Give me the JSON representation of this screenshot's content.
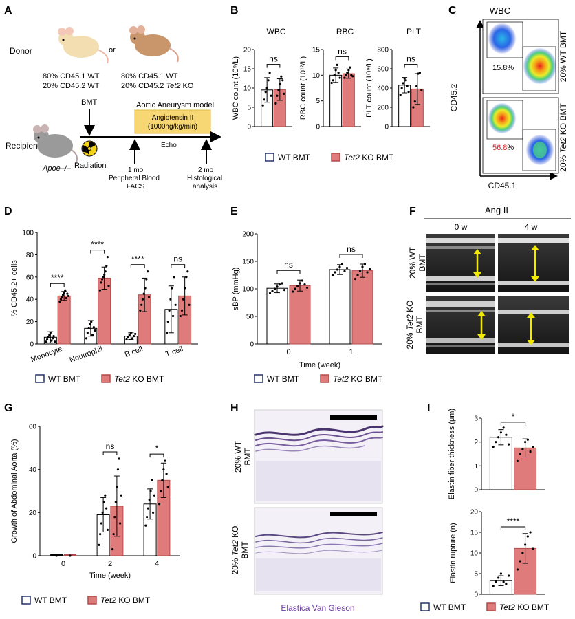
{
  "colors": {
    "wt_fill": "#ffffff",
    "ko_fill": "#e07b7b",
    "ko_stroke": "#b34a4a",
    "donor_wt": "#f2deb0",
    "donor_ko": "#c8966a",
    "recipient": "#9a9a9a",
    "ang_box": "#f7d774",
    "arrow": "#f2ea00",
    "purple": "#6b3fa0",
    "red_text": "#d21f1f"
  },
  "panels": {
    "A": "A",
    "B": "B",
    "C": "C",
    "D": "D",
    "E": "E",
    "F": "F",
    "G": "G",
    "H": "H",
    "I": "I"
  },
  "legend": {
    "wt": "WT BMT",
    "ko_gene": "Tet2",
    "ko_rest": " KO BMT"
  },
  "panelA": {
    "donor": "Donor",
    "or": "or",
    "wt_mix_1": "80% CD45.1 WT",
    "wt_mix_2": "20% CD45.2 WT",
    "ko_mix_1": "80% CD45.1 WT",
    "ko_mix_2_pre": "20% CD45.2 ",
    "ko_mix_2_gene": "Tet2",
    "ko_mix_2_post": " KO",
    "model": "Aortic Aneurysm model",
    "ang_1": "Angiotensin II",
    "ang_2": "(1000ng/kg/min)",
    "bmt": "BMT",
    "echo": "Echo",
    "recipient": "Recipient",
    "strain": "Apoe–/–",
    "radiation": "Radiation",
    "t1": "1 mo",
    "t1_desc_1": "Peripheral Blood",
    "t1_desc_2": "FACS",
    "t2": "2 mo",
    "t2_desc_1": "Histological",
    "t2_desc_2": "analysis"
  },
  "panelC": {
    "title": "WBC",
    "ylabel": "CD45.2",
    "xlabel": "CD45.1",
    "wt_pct": "15.8%",
    "ko_pct_num": "56.8",
    "ko_pct_sign": "%",
    "wt_label": "20% WT BMT",
    "ko_pre": "20% ",
    "ko_gene": "Tet2",
    "ko_post": " KO BMT"
  },
  "panelF": {
    "title": "Ang II",
    "t0": "0 w",
    "t4": "4 w",
    "wt_1": "20% WT",
    "wt_2": "BMT",
    "ko_1_pre": "20% ",
    "ko_1_gene": "Tet2",
    "ko_1_post": " KO",
    "ko_2": "BMT"
  },
  "panelH": {
    "wt_1": "20% WT",
    "wt_2": "BMT",
    "ko_1_pre": "20% ",
    "ko_1_gene": "Tet2",
    "ko_1_post": " KO",
    "ko_2": "BMT",
    "stain": "Elastica Van Gieson"
  },
  "chart_data": [
    {
      "panel": "B",
      "type": "bar",
      "title": "WBC",
      "ylabel": "WBC count (10⁹/L)",
      "ylim": [
        0,
        20
      ],
      "yticks": [
        "0",
        "5",
        "10",
        "15",
        "20"
      ],
      "sig": "ns",
      "series": [
        {
          "name": "WT BMT",
          "mean": 9.5,
          "sd": 3.2,
          "points": [
            5.5,
            7,
            9,
            10,
            12,
            14,
            8
          ]
        },
        {
          "name": "Tet2 KO BMT",
          "mean": 9.6,
          "sd": 2.8,
          "points": [
            6,
            8,
            9.5,
            11,
            13,
            12,
            8.5
          ]
        }
      ]
    },
    {
      "panel": "B",
      "type": "bar",
      "title": "RBC",
      "ylabel": "RBC count (10¹²/L)",
      "ylim": [
        0,
        15
      ],
      "yticks": [
        "0",
        "5",
        "10",
        "15"
      ],
      "sig": "ns",
      "series": [
        {
          "name": "WT BMT",
          "mean": 10.0,
          "sd": 1.4,
          "points": [
            8.5,
            9,
            10,
            11,
            12,
            10.5,
            9.5
          ]
        },
        {
          "name": "Tet2 KO BMT",
          "mean": 10.3,
          "sd": 0.9,
          "points": [
            9.5,
            10,
            10.5,
            11,
            11.5,
            10,
            9.8
          ]
        }
      ]
    },
    {
      "panel": "B",
      "type": "bar",
      "title": "PLT",
      "ylabel": "PLT count (10⁹/L)",
      "ylim": [
        0,
        800
      ],
      "yticks": [
        "0",
        "200",
        "400",
        "600",
        "800"
      ],
      "sig": "ns",
      "series": [
        {
          "name": "WT BMT",
          "mean": 430,
          "sd": 80,
          "points": [
            330,
            400,
            450,
            500,
            480,
            420,
            360
          ]
        },
        {
          "name": "Tet2 KO BMT",
          "mean": 390,
          "sd": 160,
          "points": [
            200,
            260,
            420,
            550,
            560,
            380
          ]
        }
      ]
    },
    {
      "panel": "D",
      "type": "bar",
      "ylabel": "% CD45.2+ cells",
      "ylim": [
        0,
        100
      ],
      "yticks": [
        "0",
        "20",
        "40",
        "60",
        "80",
        "100"
      ],
      "categories": [
        "Monocyte",
        "Neutrophil",
        "B cell",
        "T cell"
      ],
      "sig": [
        "****",
        "****",
        "****",
        "ns"
      ],
      "series": [
        {
          "name": "WT BMT",
          "values": [
            6,
            14,
            7,
            31
          ],
          "sd": [
            5,
            7,
            3,
            21
          ],
          "points": [
            [
              2,
              4,
              6,
              8,
              10,
              3,
              5,
              7,
              2
            ],
            [
              5,
              10,
              14,
              18,
              20,
              8,
              15,
              12
            ],
            [
              4,
              6,
              8,
              10,
              5,
              7,
              9
            ],
            [
              10,
              20,
              30,
              40,
              50,
              25,
              60,
              35
            ]
          ]
        },
        {
          "name": "Tet2 KO BMT",
          "values": [
            43,
            59,
            44,
            43
          ],
          "sd": [
            4,
            10,
            15,
            17
          ],
          "points": [
            [
              38,
              40,
              42,
              44,
              46,
              48,
              41,
              45,
              43
            ],
            [
              48,
              55,
              58,
              60,
              62,
              65,
              70,
              78,
              52
            ],
            [
              30,
              35,
              40,
              45,
              50,
              58,
              65,
              42
            ],
            [
              25,
              30,
              40,
              50,
              60,
              65,
              35
            ]
          ]
        }
      ]
    },
    {
      "panel": "E",
      "type": "bar",
      "ylabel": "sBP (mmHg)",
      "xlabel": "Time (week)",
      "ylim": [
        0,
        200
      ],
      "yticks": [
        "0",
        "50",
        "100",
        "150",
        "200"
      ],
      "categories": [
        "0",
        "1"
      ],
      "sig": [
        "ns",
        "ns"
      ],
      "series": [
        {
          "name": "WT BMT",
          "values": [
            101,
            135
          ],
          "sd": [
            8,
            9
          ],
          "points": [
            [
              92,
              96,
              100,
              104,
              108,
              110,
              98
            ],
            [
              125,
              130,
              135,
              140,
              145,
              132,
              138
            ]
          ]
        },
        {
          "name": "Tet2 KO BMT",
          "values": [
            106,
            133
          ],
          "sd": [
            10,
            12
          ],
          "points": [
            [
              95,
              100,
              105,
              110,
              115,
              108,
              102
            ],
            [
              118,
              125,
              132,
              140,
              145,
              130,
              136
            ]
          ]
        }
      ]
    },
    {
      "panel": "G",
      "type": "bar",
      "ylabel": "Growth of Abdominal Aorta (%)",
      "xlabel": "Time (week)",
      "ylim": [
        0,
        60
      ],
      "yticks": [
        "0",
        "20",
        "40",
        "60"
      ],
      "categories": [
        "0",
        "2",
        "4"
      ],
      "sig": [
        "",
        "ns",
        "*"
      ],
      "series": [
        {
          "name": "WT BMT",
          "values": [
            0,
            19,
            24
          ],
          "sd": [
            0,
            8,
            7
          ],
          "points": [
            [
              0
            ],
            [
              5,
              10,
              15,
              20,
              25,
              28,
              22,
              12
            ],
            [
              14,
              18,
              22,
              26,
              30,
              35,
              20,
              28
            ]
          ]
        },
        {
          "name": "Tet2 KO BMT",
          "values": [
            0,
            23,
            35
          ],
          "sd": [
            0,
            14,
            8
          ],
          "points": [
            [
              0
            ],
            [
              3,
              10,
              18,
              25,
              32,
              40,
              45,
              15,
              28
            ],
            [
              24,
              30,
              35,
              40,
              44,
              38,
              32
            ]
          ]
        }
      ]
    },
    {
      "panel": "I",
      "type": "bar",
      "ylabel": "Elastin fiber thickness (μm)",
      "ylim": [
        0,
        3
      ],
      "yticks": [
        "0",
        "1",
        "2",
        "3"
      ],
      "sig": "*",
      "series": [
        {
          "name": "WT BMT",
          "mean": 2.2,
          "sd": 0.32,
          "points": [
            1.8,
            2.0,
            2.2,
            2.4,
            2.6,
            2.3,
            1.9
          ]
        },
        {
          "name": "Tet2 KO BMT",
          "mean": 1.75,
          "sd": 0.38,
          "points": [
            1.2,
            1.5,
            1.7,
            2.0,
            2.1,
            1.6,
            1.8
          ]
        }
      ]
    },
    {
      "panel": "I",
      "type": "bar",
      "ylabel": "Elastin rupture (n)",
      "ylim": [
        0,
        20
      ],
      "yticks": [
        "0",
        "5",
        "10",
        "15",
        "20"
      ],
      "sig": "****",
      "series": [
        {
          "name": "WT BMT",
          "mean": 3.3,
          "sd": 1.2,
          "points": [
            2,
            3,
            4,
            5,
            3,
            2.5,
            4.5
          ]
        },
        {
          "name": "Tet2 KO BMT",
          "mean": 11.1,
          "sd": 3.6,
          "points": [
            6,
            8,
            10,
            12,
            14,
            15,
            11
          ]
        }
      ]
    }
  ]
}
